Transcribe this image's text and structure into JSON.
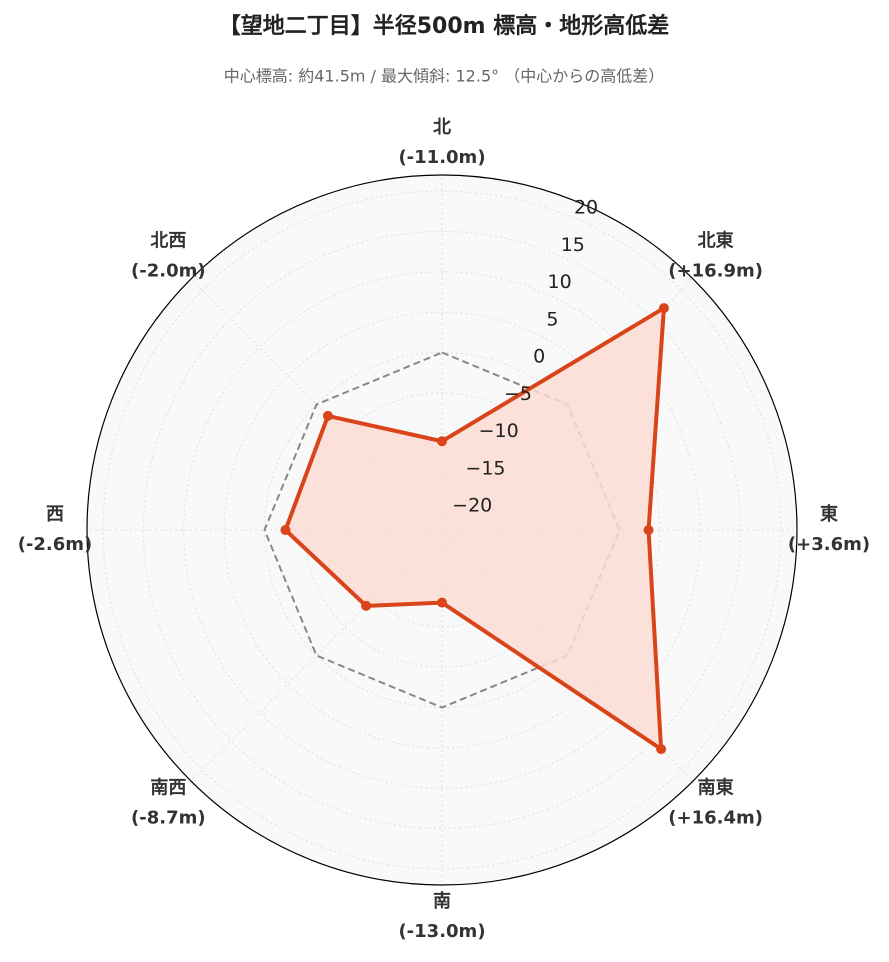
{
  "chart_data": {
    "type": "radar",
    "title": "【望地二丁目】半径500m 標高・地形高低差",
    "subtitle": "中心標高: 約41.5m / 最大傾斜: 12.5°  （中心からの高低差）",
    "categories": [
      "北",
      "北東",
      "東",
      "南東",
      "南",
      "南西",
      "西",
      "北西"
    ],
    "values": [
      -11.0,
      16.9,
      3.6,
      16.4,
      -13.0,
      -8.7,
      -2.6,
      -2.0
    ],
    "value_labels": [
      "(-11.0m)",
      "(+16.9m)",
      "(+3.6m)",
      "(+16.4m)",
      "(-13.0m)",
      "(-8.7m)",
      "(-2.6m)",
      "(-2.0m)"
    ],
    "color": "#d9441a",
    "fill_color": "#fbddd4",
    "reference_value": 0,
    "reference_color": "#888888",
    "rlim": [
      -22,
      22
    ],
    "rticks": [
      {
        "value": -20,
        "label": "−20"
      },
      {
        "value": -15,
        "label": "−15"
      },
      {
        "value": -10,
        "label": "−10"
      },
      {
        "value": -5,
        "label": "−5"
      },
      0,
      5,
      10,
      15,
      20
    ],
    "grid": true
  }
}
